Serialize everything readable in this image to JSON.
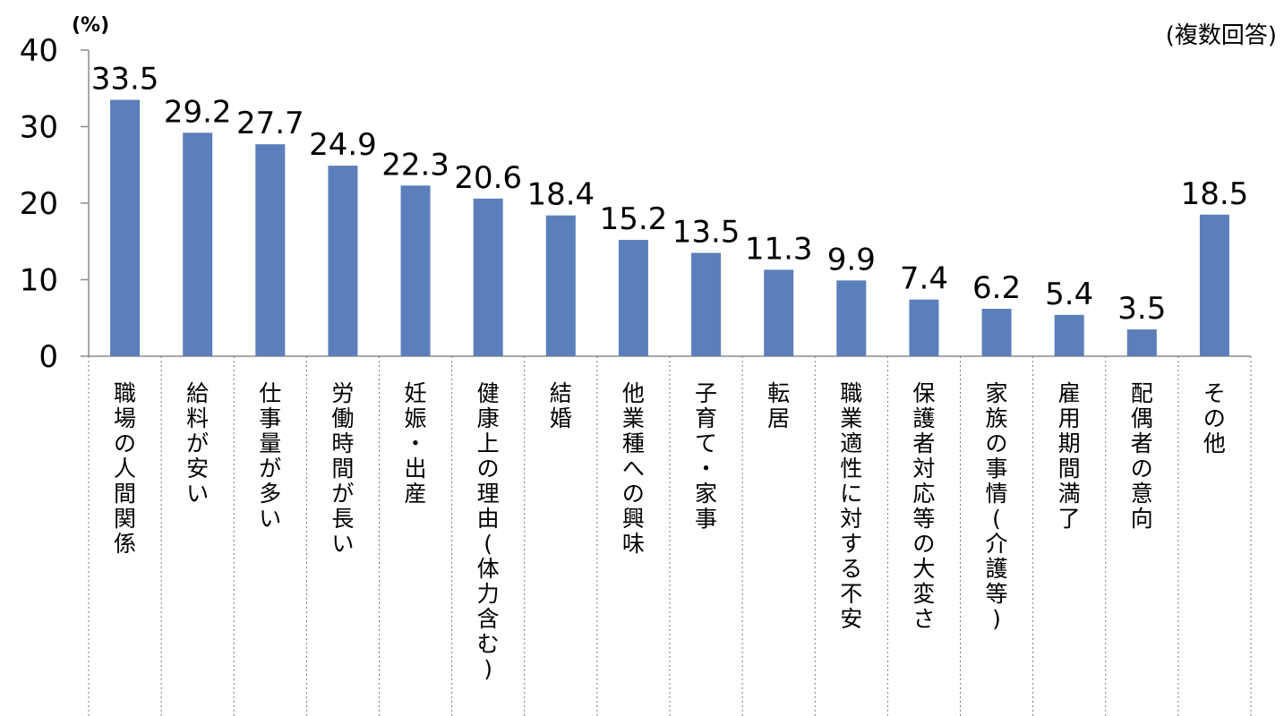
{
  "chart_data": {
    "type": "bar",
    "unit": "(%)",
    "note": "(複数回答)",
    "categories": [
      "職場の人間関係",
      "給料が安い",
      "仕事量が多い",
      "労働時間が長い",
      "妊娠・出産",
      "健康上の理由(体力含む)",
      "結婚",
      "他業種への興味",
      "子育て・家事",
      "転居",
      "職業適性に対する不安",
      "保護者対応等の大変さ",
      "家族の事情(介護等)",
      "雇用期間満了",
      "配偶者の意向",
      "その他"
    ],
    "values": [
      33.5,
      29.2,
      27.7,
      24.9,
      22.3,
      20.6,
      18.4,
      15.2,
      13.5,
      11.3,
      9.9,
      7.4,
      6.2,
      5.4,
      3.5,
      18.5
    ],
    "data_labels": [
      "33.5",
      "29.2",
      "27.7",
      "24.9",
      "22.3",
      "20.6",
      "18.4",
      "15.2",
      "13.5",
      "11.3",
      "9.9",
      "7.4",
      "6.2",
      "5.4",
      "3.5",
      "18.5"
    ],
    "yticks": [
      "0",
      "10",
      "20",
      "30",
      "40"
    ],
    "ylim": [
      0,
      40
    ],
    "bar_color": "#5b7fba",
    "grid": false,
    "legend": "none"
  }
}
